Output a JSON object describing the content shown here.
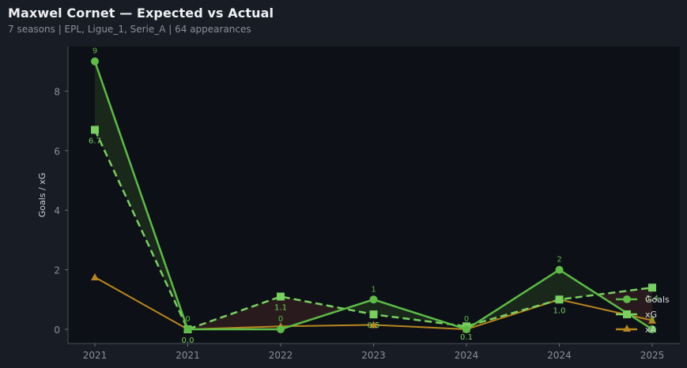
{
  "header": {
    "title": "Maxwel Cornet — Expected vs Actual",
    "subtitle": "7 seasons | EPL, Ligue_1, Serie_A | 64 appearances"
  },
  "colors": {
    "background": "#181c24",
    "plot_background": "#0d1017",
    "goals": "#5dbb46",
    "xg": "#78d060",
    "xa": "#b8861e",
    "overperform_fill": "#1b2a1c",
    "underperform_fill": "#2b1c1e"
  },
  "chart_data": {
    "type": "line",
    "title": "Maxwel Cornet — Expected vs Actual",
    "subtitle": "7 seasons | EPL, Ligue_1, Serie_A | 64 appearances",
    "xlabel": "",
    "ylabel": "Goals / xG",
    "categories": [
      "2021",
      "2021",
      "2022",
      "2023",
      "2024",
      "2024",
      "2025"
    ],
    "yticks": [
      0,
      2,
      4,
      6,
      8
    ],
    "ylim": [
      -0.5,
      9.5
    ],
    "grid": false,
    "legend_position": "lower right",
    "series": [
      {
        "name": "Goals",
        "marker": "circle",
        "style": "solid",
        "values": [
          9,
          0,
          0,
          1,
          0,
          2,
          0
        ],
        "labels": [
          "9",
          "0",
          "0",
          "1",
          "0",
          "2",
          "0"
        ]
      },
      {
        "name": "xG",
        "marker": "square",
        "style": "dashed",
        "values": [
          6.7,
          0.0,
          1.1,
          0.5,
          0.1,
          1.0,
          1.4
        ],
        "labels": [
          "6.7",
          "0.0",
          "1.1",
          "0.5",
          "0.1",
          "1.0",
          "1.4"
        ]
      },
      {
        "name": "xA",
        "marker": "triangle",
        "style": "solid",
        "values": [
          1.75,
          0.0,
          0.1,
          0.15,
          0.0,
          1.0,
          0.3
        ]
      }
    ]
  }
}
